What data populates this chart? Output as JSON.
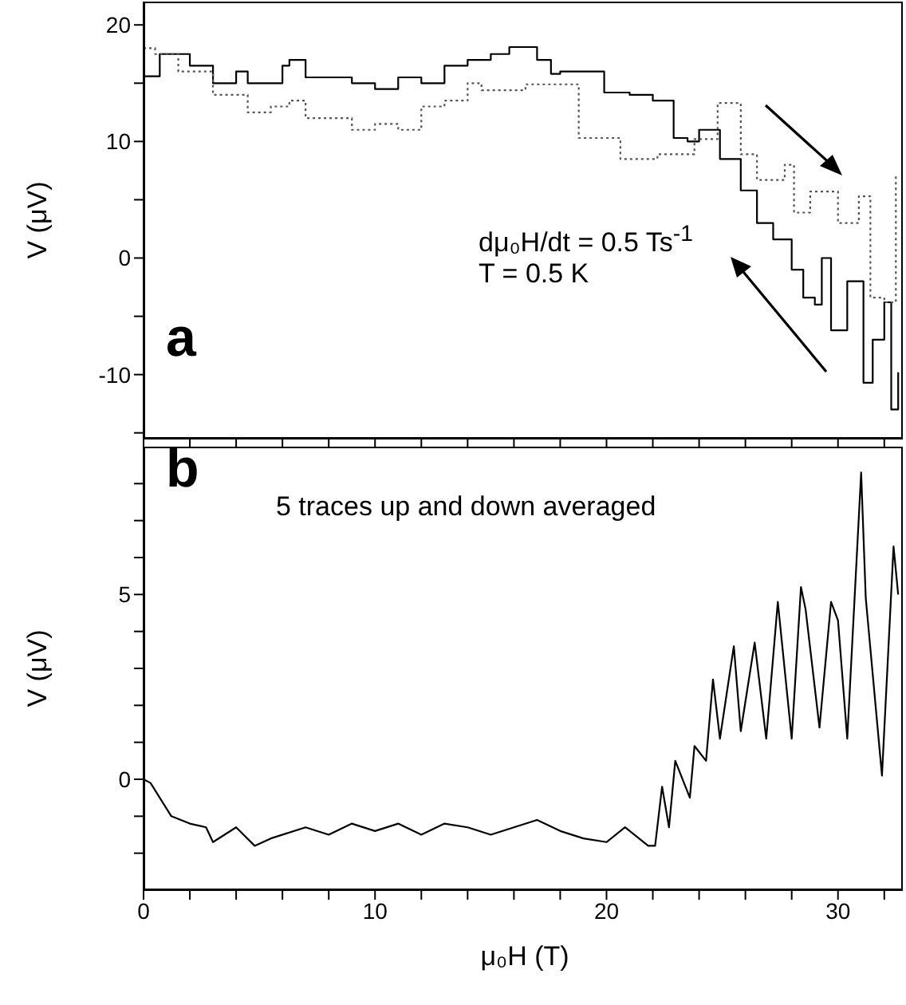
{
  "chart_data": [
    {
      "type": "step",
      "xlim": [
        0,
        32.8
      ],
      "ylim": [
        -15.5,
        22
      ],
      "tick_labels": "y",
      "ylabel": "V (μV)",
      "xticks": [
        {
          "value": 0,
          "label": null
        },
        {
          "value": 2,
          "label": null
        },
        {
          "value": 4,
          "label": null
        },
        {
          "value": 6,
          "label": null
        },
        {
          "value": 8,
          "label": null
        },
        {
          "value": 10,
          "label": null
        },
        {
          "value": 12,
          "label": null
        },
        {
          "value": 14,
          "label": null
        },
        {
          "value": 16,
          "label": null
        },
        {
          "value": 18,
          "label": null
        },
        {
          "value": 20,
          "label": null
        },
        {
          "value": 22,
          "label": null
        },
        {
          "value": 24,
          "label": null
        },
        {
          "value": 26,
          "label": null
        },
        {
          "value": 28,
          "label": null
        },
        {
          "value": 30,
          "label": null
        },
        {
          "value": 32,
          "label": null
        }
      ],
      "yticks": [
        {
          "value": -15,
          "label": null
        },
        -10,
        {
          "value": -5,
          "label": null
        },
        0,
        {
          "value": 5,
          "label": null
        },
        10,
        {
          "value": 15,
          "label": null
        },
        20
      ],
      "annotations": [
        "a",
        "dμ₀H/dt = 0.5 Ts$^{-1}$",
        "T = 0.5 K"
      ],
      "series": [
        {
          "color": "#000000",
          "line_style": "solid",
          "x": [
            0,
            0.7,
            2,
            3,
            4,
            4.5,
            6,
            6.3,
            7,
            8,
            9,
            10,
            11,
            12,
            13,
            14,
            15,
            15.8,
            17,
            17.6,
            18,
            19.9,
            21,
            22,
            22.9,
            23.5,
            24,
            24.9,
            25.8,
            26.5,
            27.2,
            28,
            28.5,
            29,
            29.3,
            29.7,
            30.4,
            31.1,
            31.5,
            32,
            32.3,
            32.6
          ],
          "values": [
            15.6,
            17.5,
            16.5,
            15,
            16,
            15,
            16.5,
            17,
            15.5,
            15.5,
            15,
            14.5,
            15.5,
            15,
            16.5,
            17,
            17.5,
            18.1,
            17,
            15.8,
            16,
            14.2,
            14,
            13.5,
            10.3,
            10,
            11,
            8.5,
            5.8,
            3,
            1.6,
            -1,
            -3.4,
            -4,
            0,
            -6.2,
            -2,
            -10.7,
            -7,
            -3.8,
            -13,
            -9.8
          ]
        },
        {
          "color": "#555555",
          "line_style": "dotted",
          "x": [
            0,
            0.5,
            1.5,
            3,
            4.5,
            5.5,
            6.3,
            7,
            8.5,
            9,
            10,
            11,
            12,
            13,
            14,
            14.6,
            16.5,
            18.8,
            20.6,
            22.2,
            23.8,
            24.8,
            25.8,
            26.5,
            27.7,
            28.1,
            28.8,
            30,
            30.9,
            31.4,
            32,
            32.5
          ],
          "values": [
            18,
            17.5,
            16,
            14,
            12.5,
            13,
            13.5,
            12,
            12,
            11,
            11.5,
            11,
            13,
            13.5,
            15,
            14.4,
            14.9,
            10.3,
            8.5,
            8.9,
            10.2,
            13.3,
            8.9,
            6.7,
            8,
            3.9,
            5.7,
            3,
            5.3,
            -3.4,
            -3.8,
            7.1
          ]
        }
      ]
    },
    {
      "type": "line",
      "xlim": [
        0,
        32.8
      ],
      "ylim": [
        -3,
        9
      ],
      "xlabel": "μ₀H (T)",
      "ylabel": "V (μV)",
      "xticks": [
        0,
        {
          "value": 2,
          "label": null
        },
        {
          "value": 4,
          "label": null
        },
        {
          "value": 6,
          "label": null
        },
        {
          "value": 8,
          "label": null
        },
        10,
        {
          "value": 12,
          "label": null
        },
        {
          "value": 14,
          "label": null
        },
        {
          "value": 16,
          "label": null
        },
        {
          "value": 18,
          "label": null
        },
        20,
        {
          "value": 22,
          "label": null
        },
        {
          "value": 24,
          "label": null
        },
        {
          "value": 26,
          "label": null
        },
        {
          "value": 28,
          "label": null
        },
        30,
        {
          "value": 32,
          "label": null
        }
      ],
      "yticks": [
        {
          "value": -2,
          "label": null
        },
        {
          "value": -1,
          "label": null
        },
        0,
        {
          "value": 1,
          "label": null
        },
        {
          "value": 2,
          "label": null
        },
        {
          "value": 3,
          "label": null
        },
        {
          "value": 4,
          "label": null
        },
        5,
        {
          "value": 6,
          "label": null
        },
        {
          "value": 7,
          "label": null
        },
        {
          "value": 8,
          "label": null
        }
      ],
      "annotations": [
        "b",
        "5 traces up and down averaged"
      ],
      "series": [
        {
          "color": "#000000",
          "x": [
            0,
            0.3,
            1.2,
            2,
            2.7,
            3,
            4,
            4.8,
            5.5,
            7,
            8,
            9,
            10,
            11,
            12,
            13,
            14,
            15,
            16,
            17,
            18,
            19,
            20,
            20.8,
            21.8,
            22.1,
            22.4,
            22.7,
            22.97,
            23.6,
            23.8,
            24.3,
            24.6,
            24.9,
            25.5,
            25.8,
            26.4,
            26.9,
            27.4,
            28,
            28.4,
            28.6,
            29.2,
            29.7,
            30,
            30.4,
            31,
            31.2,
            31.9,
            32.4,
            32.6
          ],
          "values": [
            0,
            -0.1,
            -1,
            -1.2,
            -1.3,
            -1.7,
            -1.3,
            -1.8,
            -1.6,
            -1.3,
            -1.5,
            -1.2,
            -1.4,
            -1.2,
            -1.5,
            -1.2,
            -1.3,
            -1.5,
            -1.3,
            -1.1,
            -1.4,
            -1.6,
            -1.7,
            -1.3,
            -1.8,
            -1.8,
            -0.2,
            -1.3,
            0.5,
            -0.5,
            0.9,
            0.5,
            2.7,
            1.1,
            3.6,
            1.3,
            3.7,
            1.1,
            4.8,
            1.1,
            5.2,
            4.6,
            1.4,
            4.8,
            4.3,
            1.1,
            8.3,
            4.9,
            0.1,
            6.3,
            5
          ]
        }
      ]
    }
  ]
}
